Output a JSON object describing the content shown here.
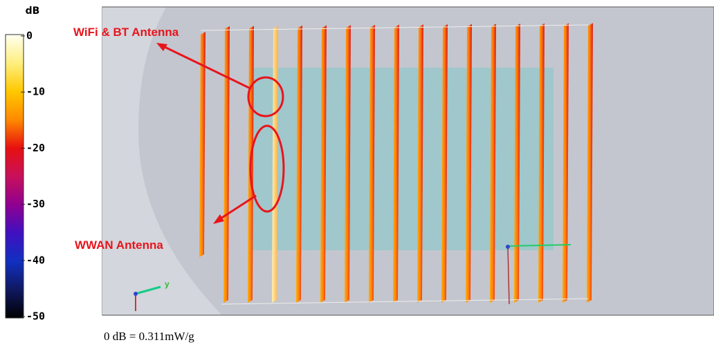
{
  "colorbar": {
    "unit": "dB",
    "ticks": [
      0,
      -10,
      -20,
      -30,
      -40,
      -50
    ]
  },
  "annotations": {
    "wifi_bt": "WiFi & BT Antenna",
    "wwan": "WWAN Antenna"
  },
  "axis_label": "y",
  "footer": "0 dB = 0.311mW/g"
}
